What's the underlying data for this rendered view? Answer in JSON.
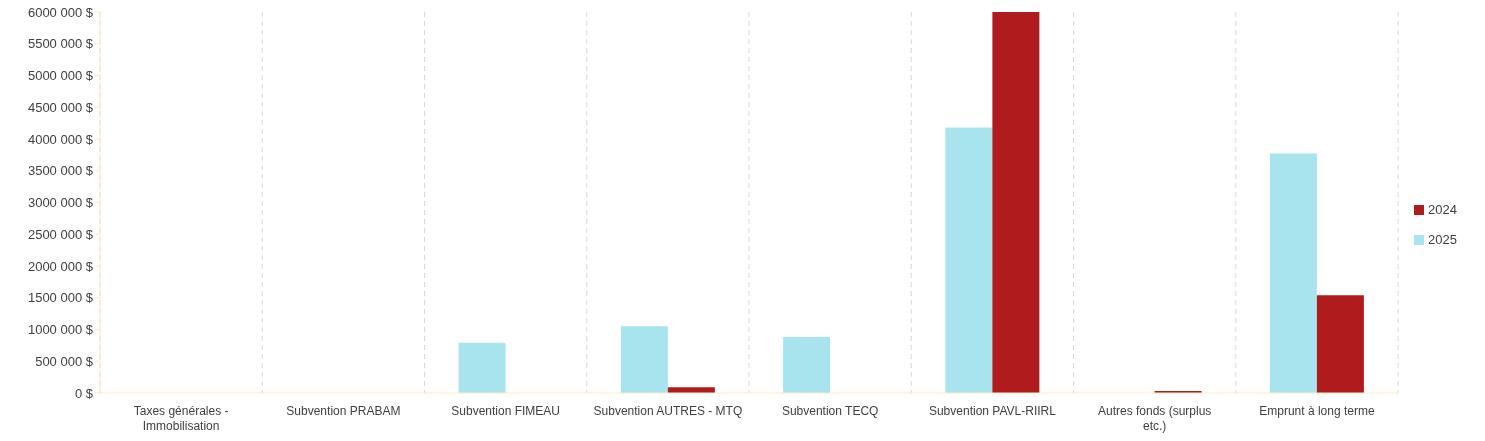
{
  "chart_data": {
    "type": "bar",
    "categories": [
      "Taxes générales - Immobilisation",
      "Subvention PRABAM",
      "Subvention FIMEAU",
      "Subvention AUTRES - MTQ",
      "Subvention TECQ",
      "Subvention PAVL-RIIRL",
      "Autres fonds (surplus etc.)",
      "Emprunt à long terme"
    ],
    "series": [
      {
        "name": "2025",
        "color": "#a8e4ed",
        "values": [
          0,
          0,
          790000,
          1050000,
          880000,
          4180000,
          0,
          3770000
        ]
      },
      {
        "name": "2024",
        "color": "#b01c1e",
        "values": [
          0,
          0,
          0,
          90000,
          0,
          6000000,
          30000,
          1540000
        ]
      }
    ],
    "ylim": [
      0,
      6000000
    ],
    "yticks": [
      {
        "value": 0,
        "label": "0 $"
      },
      {
        "value": 500000,
        "label": "500 000 $"
      },
      {
        "value": 1000000,
        "label": "1000 000 $"
      },
      {
        "value": 1500000,
        "label": "1500 000 $"
      },
      {
        "value": 2000000,
        "label": "2000 000 $"
      },
      {
        "value": 2500000,
        "label": "2500 000 $"
      },
      {
        "value": 3000000,
        "label": "3000 000 $"
      },
      {
        "value": 3500000,
        "label": "3500 000 $"
      },
      {
        "value": 4000000,
        "label": "4000 000 $"
      },
      {
        "value": 4500000,
        "label": "4500 000 $"
      },
      {
        "value": 5000000,
        "label": "5000 000 $"
      },
      {
        "value": 5500000,
        "label": "5500 000 $"
      },
      {
        "value": 6000000,
        "label": "6000 000 $"
      }
    ],
    "grid": "x",
    "legend": "right"
  }
}
